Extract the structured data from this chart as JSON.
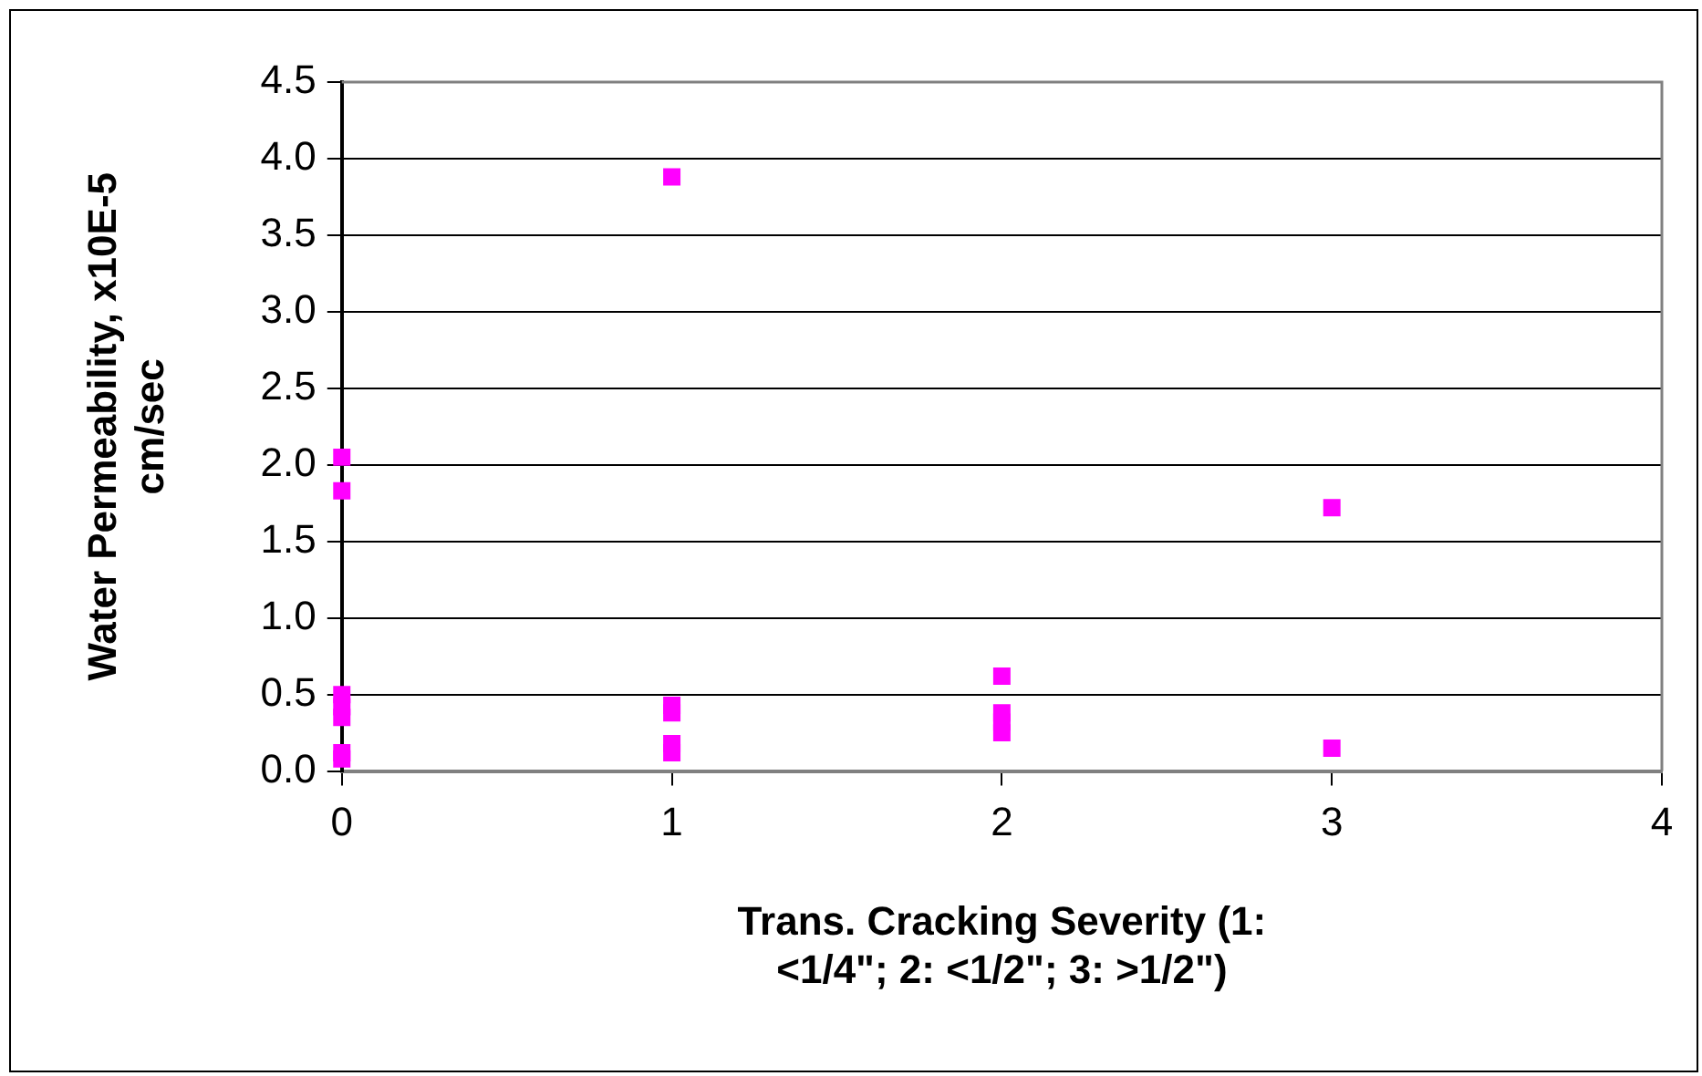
{
  "chart_data": {
    "type": "scatter",
    "xlabel": "Trans. Cracking Severity (1: <1/4\"; 2: <1/2\"; 3: >1/2\")",
    "ylabel": "Water Permeability, x10E-5 cm/sec",
    "series": [
      {
        "color": "#ff00ff",
        "x": [
          0,
          0,
          0,
          0,
          0,
          0,
          0,
          1,
          1,
          1,
          1,
          1,
          2,
          2,
          2,
          2,
          3,
          3
        ],
        "values": [
          2.05,
          1.83,
          0.5,
          0.42,
          0.35,
          0.12,
          0.08,
          3.88,
          0.43,
          0.38,
          0.18,
          0.12,
          0.62,
          0.38,
          0.32,
          0.25,
          1.72,
          0.15
        ]
      }
    ],
    "xlim": [
      0,
      4
    ],
    "xticks": [
      0,
      1,
      2,
      3,
      4
    ],
    "ylim": [
      0,
      4.5
    ],
    "yticks": [
      {
        "value": 0,
        "label": "0.0"
      },
      0.5,
      {
        "value": 1,
        "label": "1.0"
      },
      1.5,
      {
        "value": 2,
        "label": "2.0"
      },
      2.5,
      {
        "value": 3,
        "label": "3.0"
      },
      3.5,
      {
        "value": 4,
        "label": "4.0"
      },
      4.5
    ],
    "grid": "y",
    "legend": false,
    "marker": "square"
  }
}
